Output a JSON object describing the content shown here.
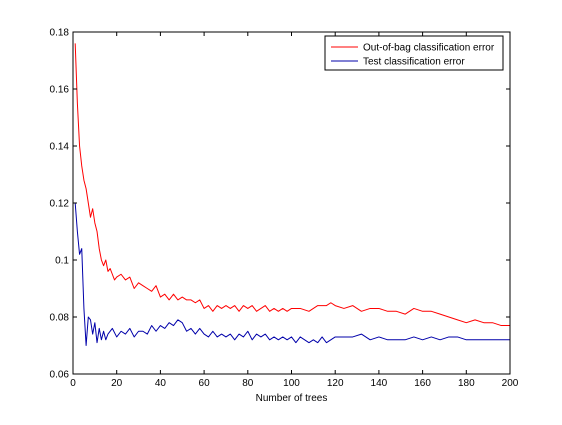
{
  "chart_data": {
    "type": "line",
    "title": "",
    "xlabel": "Number of trees",
    "ylabel": "",
    "xlim": [
      0,
      200
    ],
    "ylim": [
      0.06,
      0.18
    ],
    "xticks": [
      0,
      20,
      40,
      60,
      80,
      100,
      120,
      140,
      160,
      180,
      200
    ],
    "yticks": [
      0.06,
      0.08,
      0.1,
      0.12,
      0.14,
      0.16,
      0.18
    ],
    "ytick_labels": [
      "0.06",
      "0.08",
      "0.1",
      "0.12",
      "0.14",
      "0.16",
      "0.18"
    ],
    "grid": false,
    "legend": {
      "position": "top-right"
    },
    "series": [
      {
        "name": "Out-of-bag classification error",
        "color": "#ff0000",
        "x": [
          1,
          2,
          3,
          4,
          5,
          6,
          7,
          8,
          9,
          10,
          11,
          12,
          13,
          14,
          15,
          16,
          17,
          18,
          19,
          20,
          22,
          24,
          26,
          28,
          30,
          32,
          34,
          36,
          38,
          40,
          42,
          44,
          46,
          48,
          50,
          52,
          54,
          56,
          58,
          60,
          62,
          64,
          66,
          68,
          70,
          72,
          74,
          76,
          78,
          80,
          82,
          84,
          86,
          88,
          90,
          92,
          94,
          96,
          98,
          100,
          104,
          108,
          112,
          116,
          118,
          120,
          124,
          128,
          132,
          136,
          140,
          144,
          148,
          152,
          156,
          160,
          164,
          168,
          172,
          176,
          180,
          184,
          188,
          192,
          196,
          200
        ],
        "y": [
          0.176,
          0.155,
          0.14,
          0.133,
          0.128,
          0.125,
          0.12,
          0.115,
          0.118,
          0.113,
          0.11,
          0.104,
          0.1,
          0.098,
          0.1,
          0.096,
          0.097,
          0.095,
          0.093,
          0.094,
          0.095,
          0.093,
          0.094,
          0.09,
          0.092,
          0.091,
          0.09,
          0.089,
          0.091,
          0.087,
          0.088,
          0.086,
          0.088,
          0.086,
          0.087,
          0.086,
          0.086,
          0.085,
          0.086,
          0.083,
          0.084,
          0.082,
          0.084,
          0.083,
          0.084,
          0.083,
          0.084,
          0.082,
          0.084,
          0.083,
          0.084,
          0.082,
          0.083,
          0.084,
          0.082,
          0.083,
          0.082,
          0.083,
          0.082,
          0.083,
          0.083,
          0.082,
          0.084,
          0.084,
          0.085,
          0.084,
          0.083,
          0.084,
          0.082,
          0.083,
          0.083,
          0.082,
          0.082,
          0.081,
          0.083,
          0.082,
          0.082,
          0.081,
          0.08,
          0.079,
          0.078,
          0.079,
          0.078,
          0.078,
          0.077,
          0.077
        ]
      },
      {
        "name": "Test classification error",
        "color": "#0000aa",
        "x": [
          1,
          2,
          3,
          4,
          5,
          6,
          7,
          8,
          9,
          10,
          11,
          12,
          13,
          14,
          15,
          16,
          18,
          20,
          22,
          24,
          26,
          28,
          30,
          32,
          34,
          36,
          38,
          40,
          42,
          44,
          46,
          48,
          50,
          52,
          54,
          56,
          58,
          60,
          62,
          64,
          66,
          68,
          70,
          72,
          74,
          76,
          78,
          80,
          82,
          84,
          86,
          88,
          90,
          92,
          94,
          96,
          98,
          100,
          102,
          104,
          106,
          108,
          110,
          112,
          114,
          116,
          118,
          120,
          124,
          128,
          132,
          136,
          140,
          144,
          148,
          152,
          156,
          160,
          164,
          168,
          172,
          176,
          180,
          184,
          188,
          192,
          196,
          200
        ],
        "y": [
          0.12,
          0.11,
          0.102,
          0.104,
          0.083,
          0.07,
          0.08,
          0.079,
          0.074,
          0.078,
          0.071,
          0.076,
          0.072,
          0.075,
          0.072,
          0.074,
          0.076,
          0.073,
          0.075,
          0.074,
          0.076,
          0.073,
          0.075,
          0.075,
          0.074,
          0.077,
          0.075,
          0.077,
          0.076,
          0.078,
          0.077,
          0.079,
          0.078,
          0.075,
          0.076,
          0.074,
          0.076,
          0.074,
          0.073,
          0.075,
          0.073,
          0.074,
          0.073,
          0.074,
          0.072,
          0.074,
          0.073,
          0.075,
          0.072,
          0.074,
          0.073,
          0.074,
          0.072,
          0.073,
          0.072,
          0.073,
          0.072,
          0.073,
          0.071,
          0.073,
          0.072,
          0.071,
          0.072,
          0.071,
          0.073,
          0.071,
          0.072,
          0.073,
          0.073,
          0.073,
          0.074,
          0.072,
          0.073,
          0.072,
          0.072,
          0.072,
          0.073,
          0.072,
          0.073,
          0.072,
          0.073,
          0.073,
          0.072,
          0.072,
          0.072,
          0.072,
          0.072,
          0.072
        ]
      }
    ]
  }
}
